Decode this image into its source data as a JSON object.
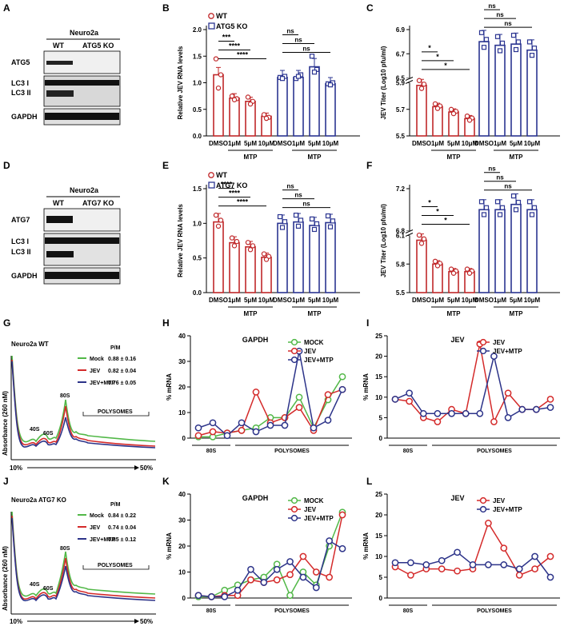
{
  "panel_labels": {
    "A": "A",
    "B": "B",
    "C": "C",
    "D": "D",
    "E": "E",
    "F": "F",
    "G": "G",
    "H": "H",
    "I": "I",
    "J": "J",
    "K": "K",
    "L": "L"
  },
  "colors": {
    "wt": "#c0282a",
    "ko": "#2b3591",
    "mock": "#52b848",
    "jev": "#d42a2a",
    "jevmtp": "#2c3389"
  },
  "blot_A": {
    "cell": "Neuro2a",
    "wt": "WT",
    "ko": "ATG5 KO",
    "rows": [
      {
        "label": "ATG5"
      },
      {
        "label": "LC3 I"
      },
      {
        "label": "LC3 II"
      },
      {
        "label": "GAPDH"
      }
    ]
  },
  "blot_D": {
    "cell": "Neuro2a",
    "wt": "WT",
    "ko": "ATG7 KO",
    "rows": [
      {
        "label": "ATG7"
      },
      {
        "label": "LC3 I"
      },
      {
        "label": "LC3 II"
      },
      {
        "label": "GAPDH"
      }
    ]
  },
  "chart_data": [
    {
      "panel": "B",
      "type": "bar",
      "ylabel": "Relative JEV RNA levels",
      "ylim": [
        0,
        2.0
      ],
      "yticks": [
        "0.0",
        "0.5",
        "1.0",
        "1.5",
        "2.0"
      ],
      "legend": [
        "WT",
        "ATG5 KO"
      ],
      "categories": [
        "DMSO",
        "1μM",
        "5μM",
        "10μM"
      ],
      "group_label": "MTP",
      "series": [
        {
          "name": "WT",
          "values": [
            1.15,
            0.71,
            0.65,
            0.37
          ]
        },
        {
          "name": "ATG5 KO",
          "values": [
            1.1,
            1.1,
            1.3,
            0.98
          ]
        }
      ],
      "sig_wt": [
        "***",
        "****",
        "****"
      ],
      "sig_ko": [
        "ns",
        "ns",
        "ns"
      ]
    },
    {
      "panel": "C",
      "type": "bar",
      "ylabel": "JEV Titer (Log10 pfu/ml)",
      "ylim": [
        5.5,
        6.9
      ],
      "yticks": [
        "5.5",
        "5.7",
        "5.9",
        "6.5",
        "6.7",
        "6.9"
      ],
      "categories": [
        "DMSO",
        "1μM",
        "5μM",
        "10μM"
      ],
      "group_label": "MTP",
      "series": [
        {
          "name": "WT",
          "values": [
            5.88,
            5.72,
            5.68,
            5.63
          ]
        },
        {
          "name": "ATG5 KO",
          "values": [
            6.8,
            6.77,
            6.78,
            6.73
          ]
        }
      ],
      "sig_wt": [
        "*",
        "*",
        "*"
      ],
      "sig_ko": [
        "ns",
        "ns",
        "ns"
      ]
    },
    {
      "panel": "E",
      "type": "bar",
      "ylabel": "Relative JEV RNA levels",
      "ylim": [
        0,
        1.5
      ],
      "yticks": [
        "0.0",
        "0.5",
        "1.0",
        "1.5"
      ],
      "legend": [
        "WT",
        "ATG7 KO"
      ],
      "categories": [
        "DMSO",
        "1μM",
        "5μM",
        "10μM"
      ],
      "group_label": "MTP",
      "series": [
        {
          "name": "WT",
          "values": [
            1.02,
            0.72,
            0.66,
            0.51
          ]
        },
        {
          "name": "ATG7 KO",
          "values": [
            1.0,
            1.02,
            0.97,
            1.01
          ]
        }
      ],
      "sig_wt": [
        "****",
        "****",
        "****"
      ],
      "sig_ko": [
        "ns",
        "ns",
        "ns"
      ]
    },
    {
      "panel": "F",
      "type": "bar",
      "ylabel": "JEV Titer (Log10 pfu/ml)",
      "ylim": [
        5.5,
        7.2
      ],
      "yticks": [
        "5.5",
        "5.8",
        "6.1",
        "6.8",
        "7.2"
      ],
      "categories": [
        "DMSO",
        "1μM",
        "5μM",
        "10μM"
      ],
      "group_label": "MTP",
      "series": [
        {
          "name": "WT",
          "values": [
            6.05,
            5.8,
            5.72,
            5.72
          ]
        },
        {
          "name": "ATG7 KO",
          "values": [
            7.0,
            7.0,
            7.05,
            7.0
          ]
        }
      ],
      "sig_wt": [
        "*",
        "*",
        "*"
      ],
      "sig_ko": [
        "ns",
        "ns",
        "ns"
      ]
    },
    {
      "panel": "G",
      "type": "line",
      "title": "Neuro2a WT",
      "ylabel": "Absorbance (260 nM)",
      "xstart": "10%",
      "xend": "50%",
      "header": "P/M",
      "legend": [
        {
          "name": "Mock",
          "pm": "0.88 ± 0.16"
        },
        {
          "name": "JEV",
          "pm": "0.82 ± 0.04"
        },
        {
          "name": "JEV+MTP",
          "pm": "0.76 ± 0.05"
        }
      ],
      "peaks": [
        "40S",
        "60S",
        "80S"
      ],
      "region": "POLYSOMES"
    },
    {
      "panel": "H",
      "type": "line",
      "title": "GAPDH",
      "ylabel": "% mRNA",
      "ylim": [
        0,
        40
      ],
      "yticks": [
        "0",
        "10",
        "20",
        "30",
        "40"
      ],
      "legend": [
        "MOCK",
        "JEV",
        "JEV+MTP"
      ],
      "regions": [
        "80S",
        "POLYSOMES"
      ],
      "series": [
        {
          "name": "MOCK",
          "values": [
            0.5,
            0.5,
            2,
            3,
            4,
            8,
            8,
            16,
            4,
            15,
            24
          ]
        },
        {
          "name": "JEV",
          "values": [
            1,
            2.5,
            2,
            3,
            18,
            6,
            8,
            12,
            3,
            17,
            19
          ]
        },
        {
          "name": "JEV+MTP",
          "values": [
            4,
            6,
            1,
            6,
            2.5,
            5,
            5,
            34,
            4,
            7,
            19
          ]
        }
      ]
    },
    {
      "panel": "I",
      "type": "line",
      "title": "JEV",
      "ylabel": "% mRNA",
      "ylim": [
        0,
        25
      ],
      "yticks": [
        "0",
        "5",
        "10",
        "15",
        "20",
        "25"
      ],
      "legend": [
        "JEV",
        "JEV+MTP"
      ],
      "regions": [
        "80S",
        "POLYSOMES"
      ],
      "series": [
        {
          "name": "JEV",
          "values": [
            9.5,
            9,
            5,
            4,
            7,
            6,
            23,
            4,
            11,
            7,
            7,
            9.5
          ]
        },
        {
          "name": "JEV+MTP",
          "values": [
            9.5,
            11,
            6,
            6,
            6,
            6,
            6,
            20,
            5,
            7,
            7,
            7.5
          ]
        }
      ]
    },
    {
      "panel": "J",
      "type": "line",
      "title": "Neuro2a ATG7 KO",
      "ylabel": "Absorbance (260 nM)",
      "xstart": "10%",
      "xend": "50%",
      "header": "P/M",
      "legend": [
        {
          "name": "Mock",
          "pm": "0.84 ± 0.22"
        },
        {
          "name": "JEV",
          "pm": "0.74 ± 0.04"
        },
        {
          "name": "JEV+MTP",
          "pm": "0.85 ± 0.12"
        }
      ],
      "peaks": [
        "40S",
        "60S",
        "80S"
      ],
      "region": "POLYSOMES"
    },
    {
      "panel": "K",
      "type": "line",
      "title": "GAPDH",
      "ylabel": "% mRNA",
      "ylim": [
        0,
        40
      ],
      "yticks": [
        "0",
        "10",
        "20",
        "30",
        "40"
      ],
      "legend": [
        "MOCK",
        "JEV",
        "JEV+MTP"
      ],
      "regions": [
        "80S",
        "POLYSOMES"
      ],
      "series": [
        {
          "name": "MOCK",
          "values": [
            0.5,
            0.5,
            3,
            5,
            7,
            8,
            13,
            1,
            10,
            5,
            20,
            33
          ]
        },
        {
          "name": "JEV",
          "values": [
            1,
            0.5,
            1,
            1,
            7,
            6,
            7,
            9,
            16,
            10,
            8,
            32
          ]
        },
        {
          "name": "JEV+MTP",
          "values": [
            1,
            0.5,
            0.5,
            3,
            11,
            6,
            11,
            14,
            8,
            4,
            22,
            19
          ]
        }
      ]
    },
    {
      "panel": "L",
      "type": "line",
      "title": "JEV",
      "ylabel": "% mRNA",
      "ylim": [
        0,
        25
      ],
      "yticks": [
        "0",
        "5",
        "10",
        "15",
        "20",
        "25"
      ],
      "legend": [
        "JEV",
        "JEV+MTP"
      ],
      "regions": [
        "80S",
        "POLYSOMES"
      ],
      "series": [
        {
          "name": "JEV",
          "values": [
            7.5,
            5.5,
            7,
            7,
            6.5,
            7,
            18,
            12,
            5.5,
            7,
            10
          ]
        },
        {
          "name": "JEV+MTP",
          "values": [
            8.5,
            8.5,
            8,
            9,
            11,
            8,
            8,
            8,
            7,
            10,
            5
          ]
        }
      ]
    }
  ]
}
